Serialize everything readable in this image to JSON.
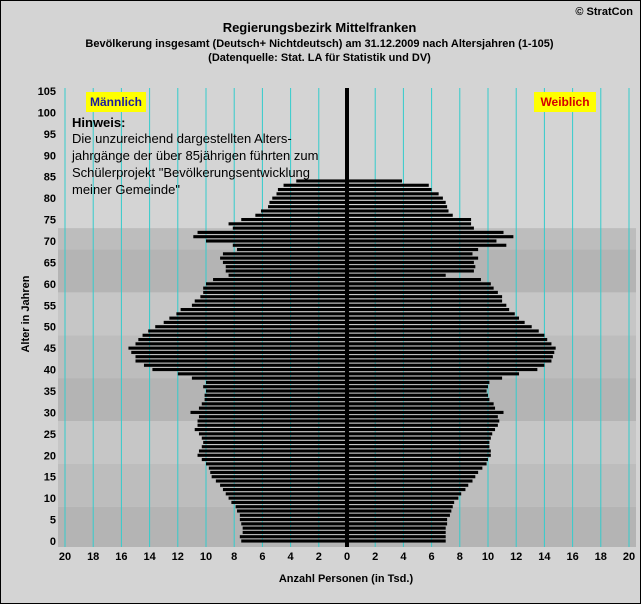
{
  "header": {
    "copyright": "© StratCon",
    "title": "Regierungsbezirk Mittelfranken",
    "subtitle1": "Bevölkerung  insgesamt (Deutsch+ Nichtdeutsch) am 31.12.2009 nach Altersjahren (1-105)",
    "subtitle2": "(Datenquelle: Stat. LA für Statistik und DV)"
  },
  "chart_data": {
    "type": "bar",
    "orientation": "horizontal",
    "subtype": "population-pyramid",
    "xlabel": "Anzahl Personen (in Tsd.)",
    "ylabel": "Alter in Jahren",
    "xlim": [
      -20,
      20
    ],
    "ylim": [
      0,
      105
    ],
    "x_ticks": [
      "20",
      "18",
      "16",
      "14",
      "12",
      "10",
      "8",
      "6",
      "4",
      "2",
      "0",
      "2",
      "4",
      "6",
      "8",
      "10",
      "12",
      "14",
      "16",
      "18",
      "20"
    ],
    "y_ticks": [
      "0",
      "5",
      "10",
      "15",
      "20",
      "25",
      "30",
      "35",
      "40",
      "45",
      "50",
      "55",
      "60",
      "65",
      "70",
      "75",
      "80",
      "85",
      "90",
      "95",
      "100",
      "105"
    ],
    "grid": "vertical",
    "legend": {
      "left": "Männlich",
      "right": "Weiblich"
    },
    "annotation_title": "Hinweis:",
    "annotation_lines": [
      "Die unzureichend dargestellten Alters-",
      "jahrgänge der über 85jährigen führten zum",
      "Schülerprojekt \"Bevölkerungsentwicklung",
      "meiner Gemeinde\""
    ],
    "ages": [
      0,
      1,
      2,
      3,
      4,
      5,
      6,
      7,
      8,
      9,
      10,
      11,
      12,
      13,
      14,
      15,
      16,
      17,
      18,
      19,
      20,
      21,
      22,
      23,
      24,
      25,
      26,
      27,
      28,
      29,
      30,
      31,
      32,
      33,
      34,
      35,
      36,
      37,
      38,
      39,
      40,
      41,
      42,
      43,
      44,
      45,
      46,
      47,
      48,
      49,
      50,
      51,
      52,
      53,
      54,
      55,
      56,
      57,
      58,
      59,
      60,
      61,
      62,
      63,
      64,
      65,
      66,
      67,
      68,
      69,
      70,
      71,
      72,
      73,
      74,
      75,
      76,
      77,
      78,
      79,
      80,
      81,
      82,
      83,
      84
    ],
    "series": [
      {
        "name": "Männlich",
        "values": [
          7.5,
          7.6,
          7.4,
          7.4,
          7.5,
          7.6,
          7.6,
          7.8,
          7.9,
          8.2,
          8.4,
          8.6,
          8.8,
          9.0,
          9.3,
          9.6,
          9.7,
          9.8,
          10.0,
          10.3,
          10.6,
          10.5,
          10.3,
          10.2,
          10.3,
          10.5,
          10.8,
          10.6,
          10.6,
          10.5,
          11.1,
          10.5,
          10.3,
          10.1,
          10.1,
          10.0,
          10.2,
          10.0,
          11.0,
          12.0,
          13.8,
          14.4,
          15.0,
          15.0,
          15.3,
          15.5,
          15.0,
          14.8,
          14.5,
          14.1,
          13.6,
          13.0,
          12.6,
          12.1,
          11.8,
          11.0,
          10.8,
          10.4,
          10.2,
          10.2,
          10.0,
          9.5,
          8.4,
          8.6,
          8.6,
          8.8,
          9.0,
          8.8,
          7.8,
          8.1,
          10.0,
          10.9,
          10.6,
          8.1,
          8.4,
          7.5,
          6.5,
          6.1,
          5.6,
          5.5,
          5.3,
          5.0,
          4.9,
          4.5,
          3.6
        ]
      },
      {
        "name": "Weiblich",
        "values": [
          7.0,
          7.0,
          7.0,
          7.0,
          7.1,
          7.1,
          7.3,
          7.4,
          7.5,
          7.6,
          7.9,
          8.1,
          8.4,
          8.6,
          8.9,
          9.1,
          9.3,
          9.6,
          9.9,
          10.0,
          10.2,
          10.2,
          10.1,
          10.1,
          10.2,
          10.3,
          10.5,
          10.7,
          10.8,
          10.7,
          11.1,
          10.5,
          10.4,
          10.1,
          10.0,
          9.9,
          10.0,
          10.1,
          11.0,
          12.2,
          13.5,
          14.0,
          14.5,
          14.6,
          14.7,
          14.8,
          14.5,
          14.2,
          14.0,
          13.6,
          13.1,
          12.6,
          12.2,
          11.9,
          11.5,
          11.3,
          11.0,
          11.0,
          10.7,
          10.4,
          10.2,
          9.5,
          7.0,
          9.0,
          9.1,
          9.0,
          9.3,
          8.9,
          9.3,
          11.3,
          10.6,
          11.8,
          11.1,
          9.0,
          8.8,
          8.8,
          7.5,
          7.2,
          7.1,
          7.0,
          6.8,
          6.5,
          6.0,
          5.8,
          3.9
        ]
      }
    ]
  }
}
